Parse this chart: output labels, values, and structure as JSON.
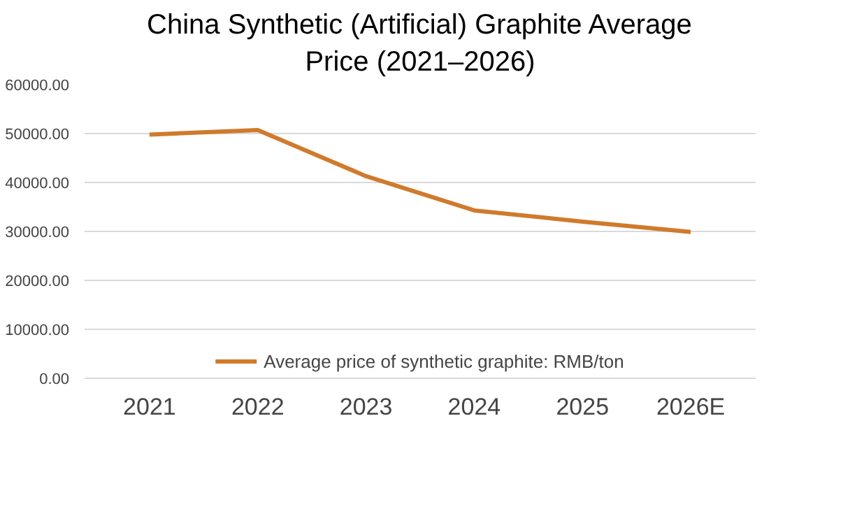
{
  "chart_data": {
    "type": "line",
    "title": "China Synthetic (Artificial) Graphite Average Price (2021–2026)",
    "categories": [
      "2021",
      "2022",
      "2023",
      "2024",
      "2025",
      "2026E"
    ],
    "series": [
      {
        "name": "Average price of synthetic graphite: RMB/ton",
        "color": "#d07a2c",
        "values": [
          49800,
          50700,
          41300,
          34300,
          32000,
          29900
        ]
      }
    ],
    "ylim": [
      0,
      60000
    ],
    "yticks": [
      {
        "value": 0,
        "label": "0.00"
      },
      {
        "value": 10000,
        "label": "10000.00"
      },
      {
        "value": 20000,
        "label": "20000.00"
      },
      {
        "value": 30000,
        "label": "30000.00"
      },
      {
        "value": 40000,
        "label": "40000.00"
      },
      {
        "value": 50000,
        "label": "50000.00"
      },
      {
        "value": 60000,
        "label": "60000.00"
      }
    ],
    "grid": "y",
    "legend": "bottom",
    "marker": "none",
    "line_style": "solid"
  }
}
